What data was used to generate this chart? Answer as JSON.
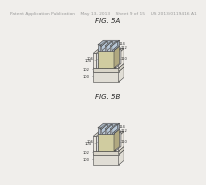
{
  "bg_color": "#f0eeeb",
  "header_color": "#999999",
  "header_fontsize": 3.2,
  "fig_a_label": "FIG. 5A",
  "fig_b_label": "FIG. 5B",
  "fig_label_fontsize": 5.0,
  "line_color": "#444444",
  "text_color": "#333333",
  "annotation_fontsize": 2.6,
  "base_color": "#e0ddd5",
  "base_top_color": "#ccc9c0",
  "sti_color": "#d8d4c8",
  "sti_top_color": "#c8c4b8",
  "fin_front_color": "#dde4ec",
  "fin_top_color": "#c8d4de",
  "fin_side_color": "#b8c8d8",
  "ild_front_color": "#e8e4dc",
  "ild_top_color": "#d8d4cc",
  "gate_front_color": "#d0cca0",
  "gate_top_color": "#c0bc90",
  "gate_side_color": "#b0a880",
  "spacer_color": "#d8d8d8",
  "cap_front_color": "#b8c4d0",
  "cap_top_color": "#a8b4c0",
  "cap_side_color": "#98a4b0",
  "hatch_color": "#888888",
  "white": "#ffffff"
}
